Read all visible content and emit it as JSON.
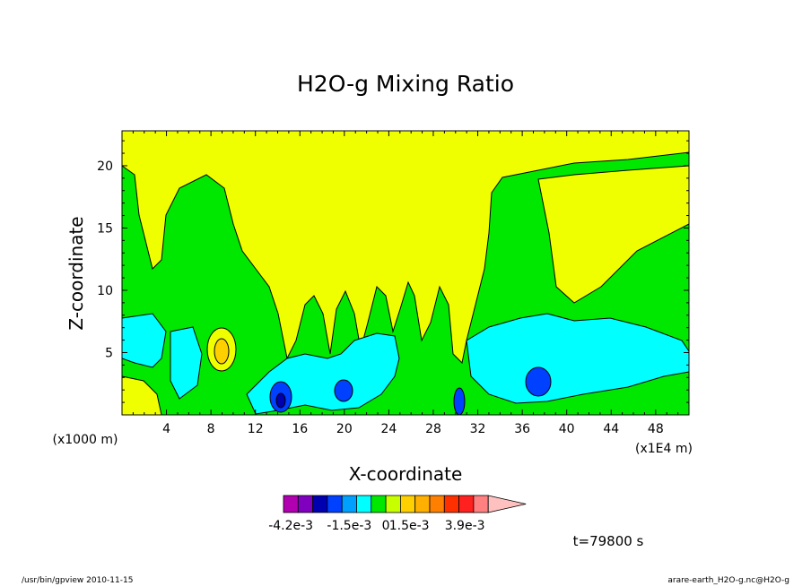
{
  "chart_data": {
    "type": "contour",
    "title": "H2O-g Mixing Ratio",
    "xlabel": "X-coordinate",
    "ylabel": "Z-coordinate",
    "x_unit_label": "(x1E4 m)",
    "y_unit_label": "(x1000 m)",
    "xlim": [
      0,
      51
    ],
    "ylim": [
      0,
      22.8
    ],
    "x_ticks": [
      4,
      8,
      12,
      16,
      20,
      24,
      28,
      32,
      36,
      40,
      44,
      48
    ],
    "y_ticks": [
      5,
      10,
      15,
      20
    ],
    "colorbar": {
      "levels": [
        "-4.2e-3",
        "-1.5e-3",
        "0",
        "1.5e-3",
        "3.9e-3"
      ],
      "colors": [
        "#b000b0",
        "#8000c0",
        "#0000b0",
        "#0040ff",
        "#00a0ff",
        "#00ffff",
        "#00e800",
        "#c8ff00",
        "#ffd000",
        "#ffb000",
        "#ff8000",
        "#ff3000",
        "#ff2020",
        "#ff8080",
        "#ffc0c0"
      ],
      "extend": "max"
    },
    "time_label": "t=79800 s",
    "regions": {
      "background_low": "#00e800",
      "upper_high": "#f0ff00",
      "mid_negative": "#00ffff",
      "strong_negative": "#0040ff",
      "deep_negative": "#0000b0",
      "positive_patch": "#ffd000"
    }
  },
  "footer": {
    "left": "/usr/bin/gpview  2010-11-15",
    "right": "arare-earth_H2O-g.nc@H2O-g"
  }
}
